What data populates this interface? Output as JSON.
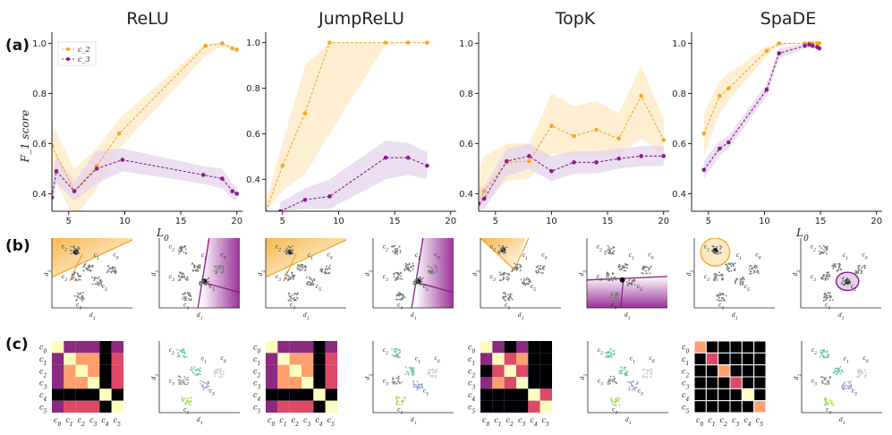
{
  "figure": {
    "panel_labels": [
      "(a)",
      "(b)",
      "(c)"
    ],
    "methods": [
      "ReLU",
      "JumpReLU",
      "TopK",
      "SpaDE"
    ]
  },
  "colors": {
    "c2": "#f5a623",
    "c2_band": "#fde9c4",
    "c3": "#8b1a8b",
    "c3_band": "#e4d4ec",
    "spine": "#222222",
    "points": "#777777",
    "active": "#111111"
  },
  "chart_data": [
    {
      "type": "line",
      "title": "ReLU",
      "xlabel": "L_0",
      "ylabel": "F_1 score",
      "xlim": [
        3.5,
        20.5
      ],
      "ylim": [
        0.33,
        1.03
      ],
      "xticks": [
        5,
        10,
        15,
        20
      ],
      "yticks": [
        0.4,
        0.6,
        0.8,
        1.0
      ],
      "series": [
        {
          "name": "c_2",
          "x": [
            3.5,
            5.5,
            7.5,
            9.5,
            17.2,
            18.7,
            19.6,
            20.0
          ],
          "y": [
            0.59,
            0.41,
            0.51,
            0.64,
            0.99,
            1.0,
            0.98,
            0.975
          ],
          "band_low": [
            0.48,
            0.3,
            0.42,
            0.58,
            0.95,
            0.99,
            0.97,
            0.965
          ],
          "band_high": [
            0.68,
            0.5,
            0.58,
            0.7,
            1.0,
            1.0,
            0.99,
            0.985
          ]
        },
        {
          "name": "c_3",
          "x": [
            3.5,
            3.9,
            5.5,
            7.5,
            9.8,
            17.0,
            18.7,
            19.6,
            20.0
          ],
          "y": [
            0.385,
            0.49,
            0.41,
            0.5,
            0.535,
            0.475,
            0.46,
            0.41,
            0.4
          ],
          "band_low": [
            0.33,
            0.44,
            0.37,
            0.44,
            0.49,
            0.44,
            0.42,
            0.38,
            0.37
          ],
          "band_high": [
            0.44,
            0.55,
            0.45,
            0.57,
            0.58,
            0.51,
            0.5,
            0.44,
            0.43
          ]
        }
      ],
      "legend": [
        "c_2",
        "c_3"
      ]
    },
    {
      "type": "line",
      "title": "JumpReLU",
      "xlabel": "",
      "ylabel": "",
      "xlim": [
        3.5,
        20.5
      ],
      "ylim": [
        0.26,
        1.03
      ],
      "xticks": [
        5,
        10,
        15,
        20
      ],
      "yticks": [
        0.4,
        0.6,
        0.8,
        1.0
      ],
      "series": [
        {
          "name": "c_2",
          "x": [
            3.5,
            5.0,
            7.0,
            9.2,
            14.2,
            16.2,
            17.9
          ],
          "y": [
            0.26,
            0.46,
            0.69,
            1.0,
            1.0,
            1.0,
            1.0
          ],
          "band_low": [
            0.26,
            0.35,
            0.42,
            0.6,
            0.99,
            1.0,
            1.0
          ],
          "band_high": [
            0.3,
            0.56,
            0.9,
            1.0,
            1.0,
            1.0,
            1.0
          ]
        },
        {
          "name": "c_3",
          "x": [
            4.8,
            7.0,
            9.2,
            14.2,
            16.2,
            17.9
          ],
          "y": [
            0.26,
            0.31,
            0.325,
            0.495,
            0.495,
            0.46
          ],
          "band_low": [
            0.26,
            0.27,
            0.27,
            0.4,
            0.42,
            0.4
          ],
          "band_high": [
            0.3,
            0.36,
            0.4,
            0.57,
            0.56,
            0.52
          ]
        }
      ]
    },
    {
      "type": "line",
      "title": "TopK",
      "xlabel": "",
      "ylabel": "",
      "xlim": [
        3.5,
        20.5
      ],
      "ylim": [
        0.33,
        1.03
      ],
      "xticks": [
        5,
        10,
        15,
        20
      ],
      "yticks": [
        0.4,
        0.6,
        0.8,
        1.0
      ],
      "series": [
        {
          "name": "c_2",
          "x": [
            3.5,
            4.0,
            6.0,
            8.0,
            10.0,
            12.0,
            14.0,
            16.0,
            18.0,
            20.0
          ],
          "y": [
            0.36,
            0.41,
            0.525,
            0.53,
            0.67,
            0.63,
            0.655,
            0.62,
            0.79,
            0.615
          ],
          "band_low": [
            0.34,
            0.37,
            0.45,
            0.46,
            0.56,
            0.55,
            0.56,
            0.55,
            0.62,
            0.55
          ],
          "band_high": [
            0.5,
            0.55,
            0.6,
            0.6,
            0.8,
            0.75,
            0.77,
            0.72,
            0.91,
            0.7
          ]
        },
        {
          "name": "c_3",
          "x": [
            3.5,
            4.0,
            6.0,
            8.0,
            10.0,
            12.0,
            14.0,
            16.0,
            18.0,
            20.0
          ],
          "y": [
            0.36,
            0.38,
            0.53,
            0.55,
            0.49,
            0.525,
            0.525,
            0.54,
            0.55,
            0.55
          ],
          "band_low": [
            0.33,
            0.34,
            0.47,
            0.5,
            0.45,
            0.48,
            0.48,
            0.5,
            0.51,
            0.51
          ],
          "band_high": [
            0.42,
            0.43,
            0.58,
            0.6,
            0.55,
            0.57,
            0.57,
            0.58,
            0.59,
            0.59
          ]
        }
      ]
    },
    {
      "type": "line",
      "title": "SpaDE",
      "xlabel": "L_0",
      "ylabel": "",
      "xlim": [
        3.5,
        20.5
      ],
      "ylim": [
        0.33,
        1.03
      ],
      "xticks": [
        5,
        10,
        15,
        20
      ],
      "yticks": [
        0.4,
        0.6,
        0.8,
        1.0
      ],
      "series": [
        {
          "name": "c_2",
          "x": [
            4.6,
            6.0,
            6.8,
            10.2,
            11.3,
            13.6,
            14.0,
            14.3,
            14.7,
            14.9
          ],
          "y": [
            0.64,
            0.79,
            0.82,
            0.97,
            1.0,
            1.0,
            1.0,
            1.0,
            1.0,
            1.0
          ],
          "band_low": [
            0.55,
            0.72,
            0.77,
            0.95,
            0.99,
            1.0,
            1.0,
            1.0,
            1.0,
            1.0
          ],
          "band_high": [
            0.72,
            0.85,
            0.88,
            0.99,
            1.0,
            1.0,
            1.0,
            1.0,
            1.0,
            1.0
          ]
        },
        {
          "name": "c_3",
          "x": [
            4.6,
            6.0,
            6.8,
            10.2,
            11.3,
            13.6,
            14.0,
            14.3,
            14.7,
            14.9
          ],
          "y": [
            0.495,
            0.58,
            0.605,
            0.815,
            0.96,
            0.99,
            0.995,
            0.99,
            0.985,
            0.98
          ],
          "band_low": [
            0.46,
            0.55,
            0.58,
            0.79,
            0.94,
            0.98,
            0.99,
            0.98,
            0.98,
            0.97
          ],
          "band_high": [
            0.53,
            0.61,
            0.63,
            0.84,
            0.98,
            1.0,
            1.0,
            1.0,
            0.99,
            0.99
          ]
        }
      ]
    }
  ],
  "scatter": {
    "xlabel": "d_1",
    "ylabel": "d_2",
    "cluster_labels": [
      "c_0",
      "c_1",
      "c_2",
      "c_3",
      "c_4",
      "c_5"
    ]
  },
  "heatmap": {
    "row_labels": [
      "c_0",
      "c_1",
      "c_2",
      "c_3",
      "c_4",
      "c_5"
    ],
    "col_labels": [
      "c_0",
      "c_1",
      "c_2",
      "c_3",
      "c_4",
      "c_5"
    ]
  },
  "legend_labels": [
    "c_2",
    "c_3"
  ]
}
